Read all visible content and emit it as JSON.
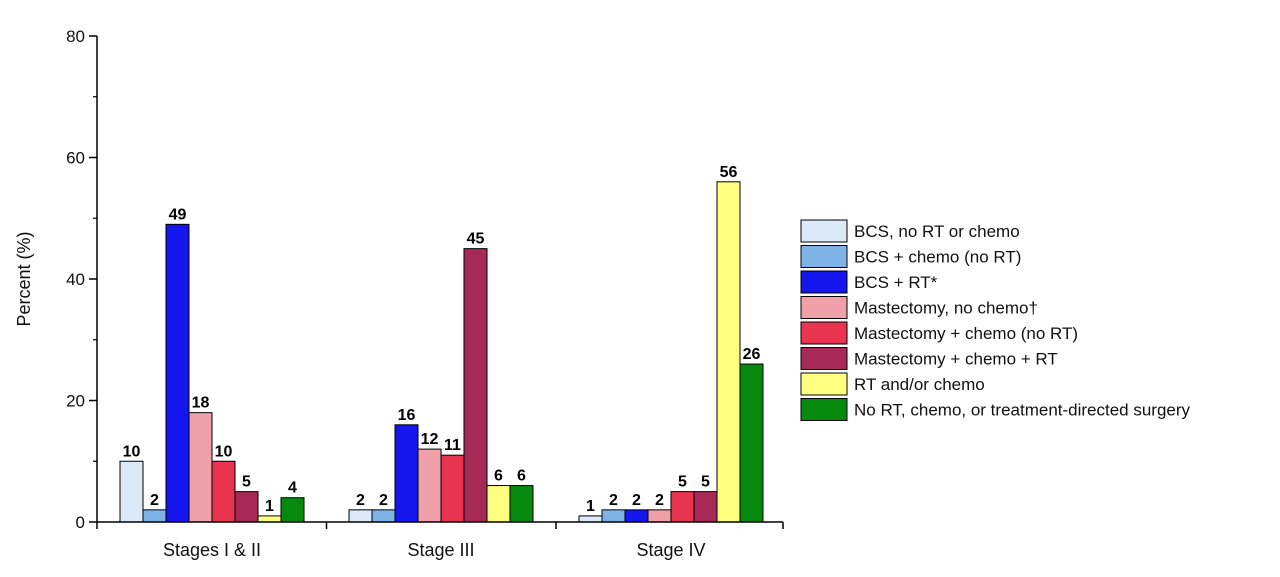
{
  "chart_data": {
    "type": "bar",
    "ylabel": "Percent (%)",
    "ylim": [
      0,
      80
    ],
    "yticks": [
      0,
      20,
      40,
      60,
      80
    ],
    "grid": false,
    "legend_position": "right",
    "categories": [
      "Stages I & II",
      "Stage III",
      "Stage IV"
    ],
    "series": [
      {
        "name": "BCS, no RT or chemo",
        "color": "#dce9f8",
        "values": [
          10,
          2,
          1
        ],
        "labels": [
          "10",
          "2",
          "1"
        ]
      },
      {
        "name": "BCS + chemo (no RT)",
        "color": "#7fb2e6",
        "values": [
          2,
          2,
          2
        ],
        "labels": [
          "2",
          "2",
          "2"
        ]
      },
      {
        "name": "BCS + RT*",
        "color": "#1515ee",
        "values": [
          49,
          16,
          2
        ],
        "labels": [
          "49",
          "16",
          "2"
        ]
      },
      {
        "name": "Mastectomy, no chemo†",
        "color": "#f0a0a8",
        "values": [
          18,
          12,
          2
        ],
        "labels": [
          "18",
          "12",
          "2"
        ]
      },
      {
        "name": "Mastectomy + chemo (no RT)",
        "color": "#e8344f",
        "values": [
          10,
          11,
          5
        ],
        "labels": [
          "10",
          "11",
          "5"
        ]
      },
      {
        "name": "Mastectomy + chemo + RT",
        "color": "#a62a55",
        "values": [
          5,
          45,
          5
        ],
        "labels": [
          "5",
          "45",
          "5"
        ]
      },
      {
        "name": "RT and/or chemo",
        "color": "#ffff80",
        "values": [
          1,
          6,
          56
        ],
        "labels": [
          "1",
          "6",
          "56"
        ]
      },
      {
        "name": "No RT, chemo, or treatment-directed surgery",
        "color": "#058a0d",
        "values": [
          4,
          6,
          26
        ],
        "labels": [
          "4",
          "6",
          "26"
        ]
      }
    ]
  }
}
